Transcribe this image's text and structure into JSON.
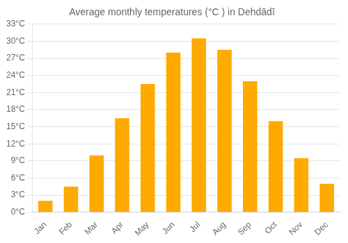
{
  "chart_data": {
    "type": "bar",
    "title": "Average monthly temperatures (°C ) in Dehdādī",
    "categories": [
      "Jan",
      "Feb",
      "Mar",
      "Apr",
      "May",
      "Jun",
      "Jul",
      "Aug",
      "Sep",
      "Oct",
      "Nov",
      "Dec"
    ],
    "values": [
      2.0,
      4.5,
      10.0,
      16.5,
      22.5,
      28.0,
      30.5,
      28.5,
      23.0,
      16.0,
      9.5,
      5.0
    ],
    "color": "#FFAA00",
    "ylim": [
      0,
      33
    ],
    "yticks": [
      {
        "value": 0,
        "label": "0°C"
      },
      {
        "value": 3,
        "label": "3°C"
      },
      {
        "value": 6,
        "label": "6°C"
      },
      {
        "value": 9,
        "label": "9°C"
      },
      {
        "value": 12,
        "label": "12°C"
      },
      {
        "value": 15,
        "label": "15°C"
      },
      {
        "value": 18,
        "label": "18°C"
      },
      {
        "value": 21,
        "label": "21°C"
      },
      {
        "value": 24,
        "label": "24°C"
      },
      {
        "value": 27,
        "label": "27°C"
      },
      {
        "value": 30,
        "label": "30°C"
      },
      {
        "value": 33,
        "label": "33°C"
      }
    ],
    "grid": true
  }
}
